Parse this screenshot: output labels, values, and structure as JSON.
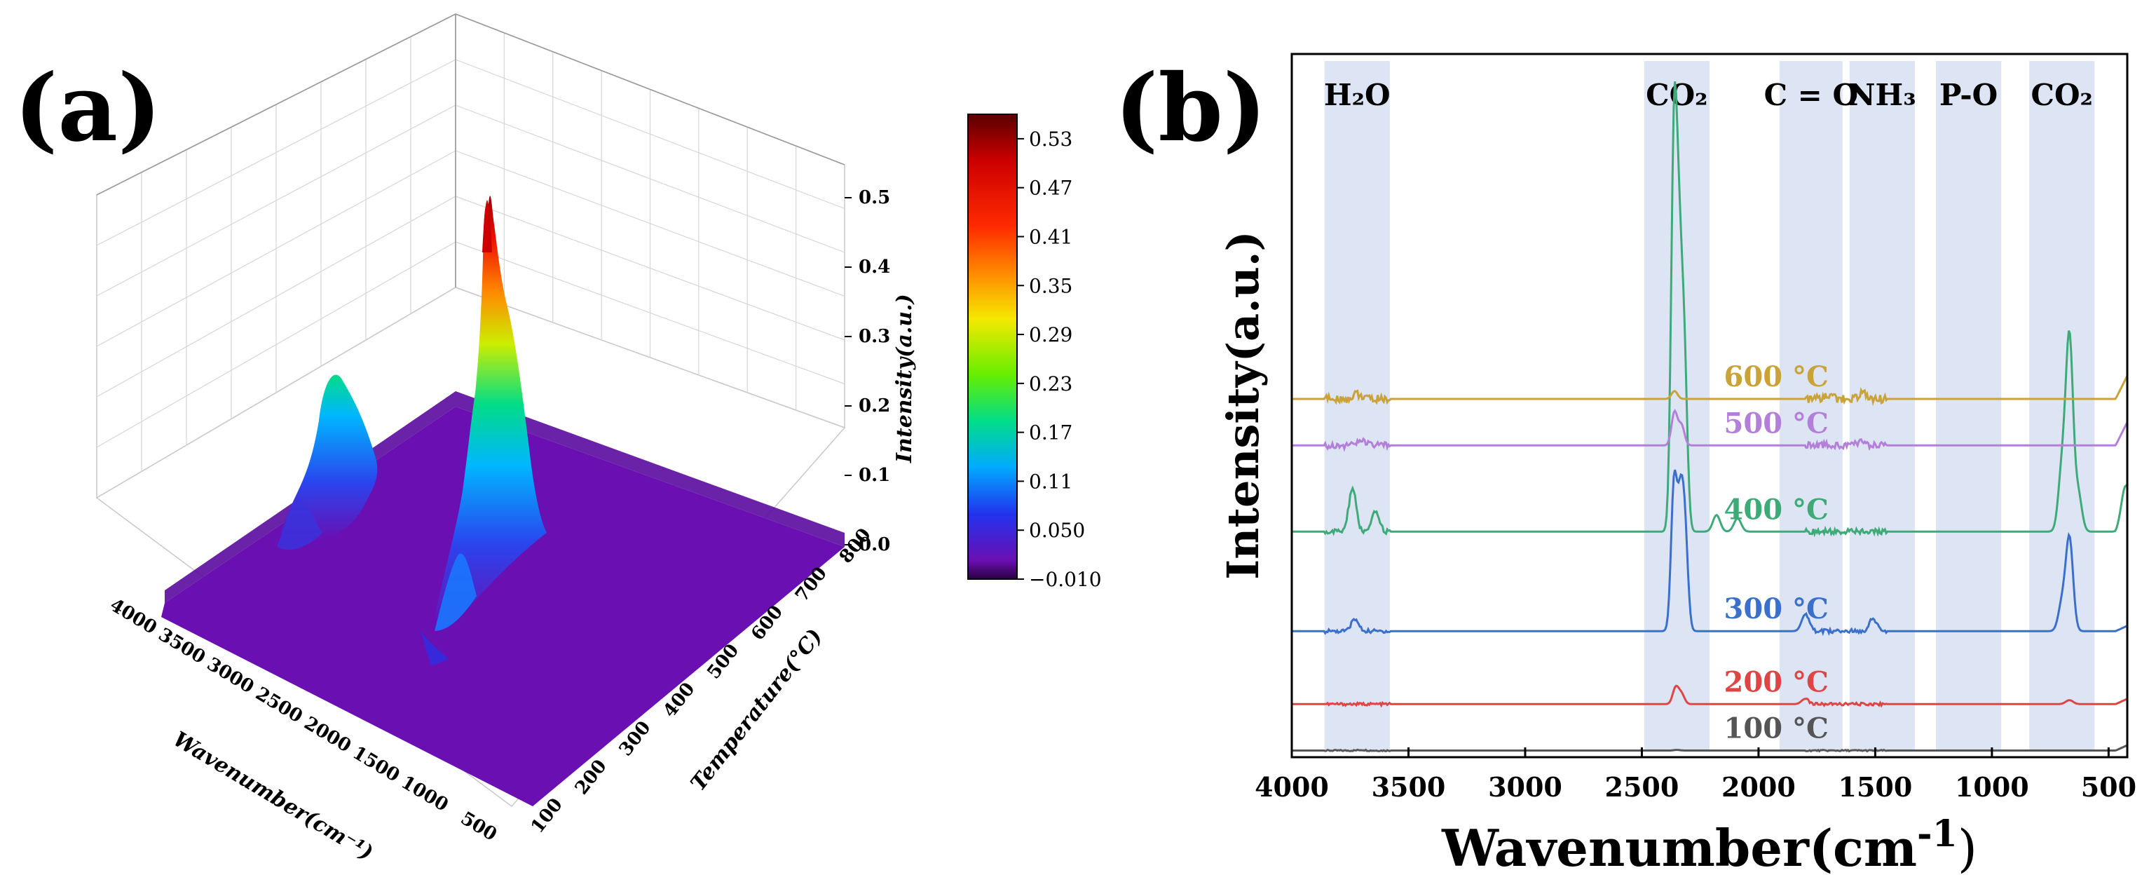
{
  "panel_labels": {
    "a": "(a)",
    "b": "(b)"
  },
  "colors": {
    "background": "#ffffff",
    "surface_base": "#6a0fb2",
    "band_fill": "#dde5f5"
  },
  "chart_data": [
    {
      "panel": "(a)",
      "type": "surface3d",
      "x_axis": {
        "label": "Wavenumber(cm⁻¹)",
        "ticks": [
          "4000",
          "3500",
          "3000",
          "2500",
          "2000",
          "1500",
          "1000",
          "500"
        ],
        "range": [
          4000,
          500
        ]
      },
      "y_axis": {
        "label": "Temperature(°C)",
        "ticks": [
          "100",
          "200",
          "300",
          "400",
          "500",
          "600",
          "700",
          "800"
        ],
        "range": [
          100,
          800
        ]
      },
      "z_axis": {
        "label": "Intensity(a.u.)",
        "ticks": [
          "0.0",
          "0.1",
          "0.2",
          "0.3",
          "0.4",
          "0.5"
        ],
        "range": [
          0,
          0.55
        ]
      },
      "colorbar": {
        "ticks": [
          "0.53",
          "0.47",
          "0.41",
          "0.35",
          "0.29",
          "0.23",
          "0.17",
          "0.11",
          "0.050",
          "−0.010"
        ],
        "range": [
          -0.01,
          0.56
        ],
        "colormap": "rainbow"
      },
      "peaks": [
        {
          "wavenumber": 3700,
          "temperature": 400,
          "intensity": 0.25
        },
        {
          "wavenumber": 2350,
          "temperature": 400,
          "intensity": 0.52
        },
        {
          "wavenumber": 2350,
          "temperature": 300,
          "intensity": 0.35
        },
        {
          "wavenumber": 668,
          "temperature": 400,
          "intensity": 0.06
        }
      ],
      "grid": true
    },
    {
      "panel": "(b)",
      "type": "line",
      "xlabel": "Wavenumber(cm⁻¹)",
      "xlabel_main": "Wavenumber(cm",
      "xlabel_sup": "-1",
      "xlabel_close": ")",
      "ylabel": "Intensity(a.u.)",
      "xlim": [
        4000,
        420
      ],
      "x_ticks": [
        4000,
        3500,
        3000,
        2500,
        2000,
        1500,
        1000,
        500
      ],
      "x_tick_labels": [
        "4000",
        "3500",
        "3000",
        "2500",
        "2000",
        "1500",
        "1000",
        "500"
      ],
      "y_ticks": [],
      "bands": [
        {
          "label": "H₂O",
          "from": 3860,
          "to": 3580
        },
        {
          "label": "CO₂",
          "from": 2490,
          "to": 2210
        },
        {
          "label": "C = O",
          "from": 1910,
          "to": 1640
        },
        {
          "label": "NH₃",
          "from": 1610,
          "to": 1330
        },
        {
          "label": "P-O",
          "from": 1240,
          "to": 960
        },
        {
          "label": "CO₂",
          "from": 840,
          "to": 560
        }
      ],
      "series": [
        {
          "name": "100 °C",
          "color": "#555555",
          "offset": 0.0,
          "peaks": [
            [
              2350,
              0.01
            ],
            [
              3700,
              0.01
            ]
          ]
        },
        {
          "name": "200 °C",
          "color": "#e04545",
          "offset": 0.7,
          "peaks": [
            [
              2355,
              0.25
            ],
            [
              2330,
              0.15
            ],
            [
              1800,
              0.08
            ],
            [
              668,
              0.06
            ]
          ]
        },
        {
          "name": "300 °C",
          "color": "#3a6fcc",
          "offset": 1.8,
          "peaks": [
            [
              2362,
              2.2
            ],
            [
              2335,
              1.7
            ],
            [
              2315,
              1.4
            ],
            [
              3730,
              0.18
            ],
            [
              1800,
              0.25
            ],
            [
              1510,
              0.2
            ],
            [
              668,
              1.4
            ],
            [
              700,
              0.4
            ]
          ]
        },
        {
          "name": "400 °C",
          "color": "#3daa78",
          "offset": 3.3,
          "peaks": [
            [
              2362,
              5.8
            ],
            [
              2340,
              3.4
            ],
            [
              2318,
              2.5
            ],
            [
              3740,
              0.65
            ],
            [
              3640,
              0.3
            ],
            [
              2180,
              0.25
            ],
            [
              2090,
              0.2
            ],
            [
              668,
              2.9
            ],
            [
              700,
              0.9
            ],
            [
              630,
              0.55
            ],
            [
              430,
              0.4
            ]
          ]
        },
        {
          "name": "500 °C",
          "color": "#b37fd9",
          "offset": 4.6,
          "peaks": [
            [
              2360,
              0.5
            ],
            [
              2330,
              0.3
            ],
            [
              3700,
              0.08
            ],
            [
              1560,
              0.08
            ]
          ]
        },
        {
          "name": "600 °C",
          "color": "#c9a338",
          "offset": 5.3,
          "peaks": [
            [
              2360,
              0.12
            ],
            [
              3720,
              0.08
            ],
            [
              1550,
              0.1
            ],
            [
              1700,
              0.05
            ]
          ]
        }
      ],
      "series_label_x": 1700,
      "ylim": [
        -0.1,
        10.5
      ]
    }
  ]
}
